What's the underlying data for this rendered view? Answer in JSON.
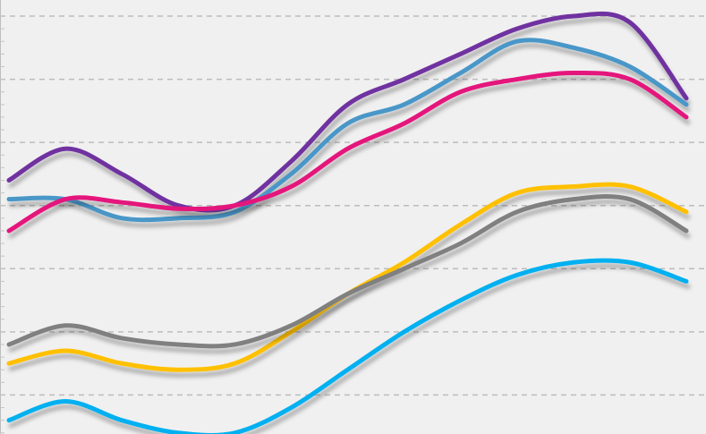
{
  "chart_data": {
    "type": "line",
    "title": "",
    "xlabel": "",
    "ylabel": "",
    "x": [
      0,
      1,
      2,
      3,
      4,
      5,
      6,
      7,
      8,
      9,
      10,
      11,
      12
    ],
    "ylim": [
      0,
      7
    ],
    "grid": true,
    "smooth": true,
    "series": [
      {
        "color": "#7030a0",
        "values": [
          4.4,
          4.9,
          4.5,
          4.0,
          4.0,
          4.7,
          5.6,
          6.0,
          6.4,
          6.8,
          7.0,
          6.9,
          5.7
        ]
      },
      {
        "color": "#4a97c8",
        "values": [
          4.1,
          4.1,
          3.8,
          3.8,
          3.9,
          4.5,
          5.3,
          5.6,
          6.1,
          6.6,
          6.5,
          6.2,
          5.6
        ]
      },
      {
        "color": "#e4147c",
        "values": [
          3.6,
          4.1,
          4.05,
          3.95,
          4.0,
          4.3,
          4.9,
          5.3,
          5.8,
          6.0,
          6.1,
          6.0,
          5.4
        ]
      },
      {
        "color": "#ffc000",
        "values": [
          1.5,
          1.7,
          1.5,
          1.4,
          1.5,
          2.0,
          2.6,
          3.1,
          3.7,
          4.2,
          4.3,
          4.3,
          3.9
        ]
      },
      {
        "color": "#808080",
        "values": [
          1.8,
          2.1,
          1.9,
          1.8,
          1.8,
          2.1,
          2.6,
          3.0,
          3.4,
          3.9,
          4.1,
          4.1,
          3.6
        ]
      },
      {
        "color": "#00b0f0",
        "values": [
          0.6,
          0.9,
          0.6,
          0.4,
          0.4,
          0.8,
          1.4,
          2.0,
          2.5,
          2.9,
          3.1,
          3.1,
          2.8
        ]
      }
    ]
  }
}
